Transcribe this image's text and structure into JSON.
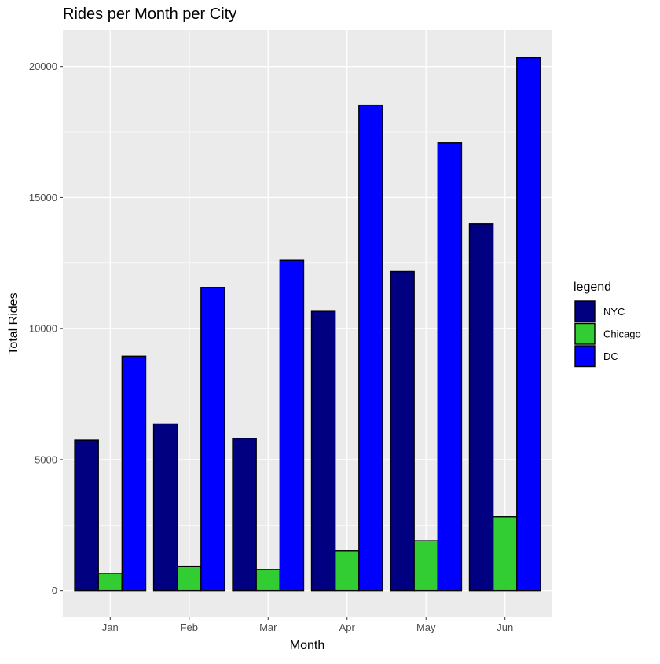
{
  "chart_data": {
    "type": "bar",
    "title": "Rides per Month per City",
    "xlabel": "Month",
    "ylabel": "Total Rides",
    "categories": [
      "Jan",
      "Feb",
      "Mar",
      "Apr",
      "May",
      "Jun"
    ],
    "series": [
      {
        "name": "NYC",
        "color": "#000080",
        "values": [
          5745,
          6364,
          5816,
          10661,
          12180,
          14000
        ]
      },
      {
        "name": "Chicago",
        "color": "#32cd32",
        "values": [
          650,
          930,
          803,
          1526,
          1905,
          2816
        ]
      },
      {
        "name": "DC",
        "color": "#0000ff",
        "values": [
          8946,
          11572,
          12608,
          18532,
          17089,
          20335
        ]
      }
    ],
    "ylim": [
      -1000,
      21400
    ],
    "yticks": [
      0,
      5000,
      10000,
      15000,
      20000
    ],
    "grid": true,
    "legend": {
      "title": "legend",
      "placement": "right"
    },
    "colors": {
      "panel_background": "#ebebeb",
      "grid": "#ffffff",
      "bar_outline": "#000000"
    }
  }
}
